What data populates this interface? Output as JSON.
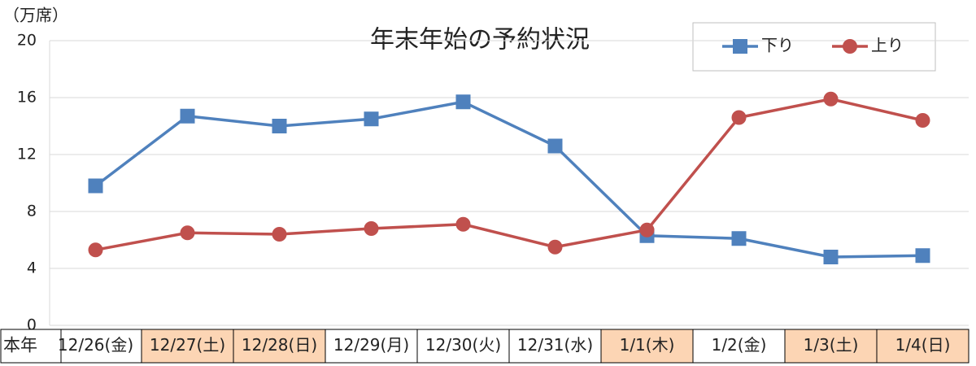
{
  "chart_data": {
    "type": "line",
    "title": "年末年始の予約状況",
    "y_label": "（万席）",
    "row_header": "本年",
    "categories": [
      "12/26(金)",
      "12/27(土)",
      "12/28(日)",
      "12/29(月)",
      "12/30(火)",
      "12/31(水)",
      "1/1(木)",
      "1/2(金)",
      "1/3(土)",
      "1/4(日)"
    ],
    "highlighted": [
      false,
      true,
      true,
      false,
      false,
      false,
      true,
      false,
      true,
      true
    ],
    "highlight_color": "#fcd5b4",
    "series": [
      {
        "name": "下り",
        "color": "#4f81bd",
        "marker": "square",
        "values": [
          9.8,
          14.7,
          14.0,
          14.5,
          15.7,
          12.6,
          6.3,
          6.1,
          4.8,
          4.9
        ]
      },
      {
        "name": "上り",
        "color": "#c0504d",
        "marker": "circle",
        "values": [
          5.3,
          6.5,
          6.4,
          6.8,
          7.1,
          5.5,
          6.7,
          14.6,
          15.9,
          14.4
        ]
      }
    ],
    "ylim": [
      0,
      20
    ],
    "yticks": [
      0,
      4,
      8,
      12,
      16,
      20
    ],
    "grid": true
  }
}
